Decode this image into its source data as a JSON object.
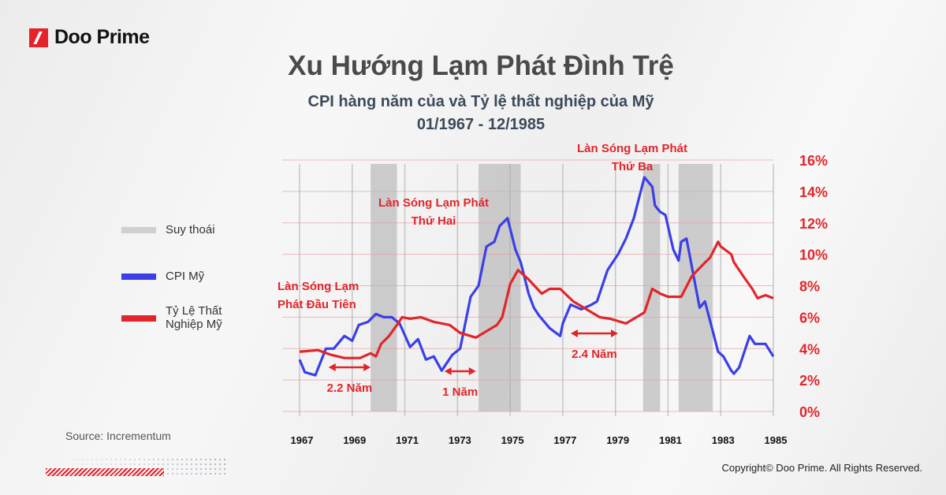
{
  "brand": {
    "name": "Doo Prime"
  },
  "header": {
    "title": "Xu Hướng Lạm Phát Đình Trệ",
    "subtitle_line1": "CPI hàng năm của và Tỷ lệ thất nghiệp của Mỹ",
    "subtitle_line2": "01/1967 - 12/1985"
  },
  "legend": [
    {
      "label": "Suy thoái",
      "color": "#c8c8c8"
    },
    {
      "label": "CPI Mỹ",
      "color": "#3a3fe8"
    },
    {
      "label_line1": "Tỷ Lệ Thất",
      "label_line2": "Nghiệp Mỹ",
      "color": "#e0262b"
    }
  ],
  "footer": {
    "source": "Source: Incrementum",
    "copyright": "Copyright© Doo Prime. All Rights Reserved."
  },
  "chart_data": {
    "type": "line",
    "xlim": [
      1967,
      1985
    ],
    "ylim": [
      0,
      16
    ],
    "x_ticks": [
      "1967",
      "1969",
      "1971",
      "1973",
      "1975",
      "1977",
      "1979",
      "1981",
      "1983",
      "1985"
    ],
    "y_ticks": [
      "0%",
      "2%",
      "4%",
      "6%",
      "8%",
      "10%",
      "12%",
      "14%",
      "16%"
    ],
    "grid": true,
    "legend_placement": "left",
    "recessions": [
      [
        1969.7,
        1970.7
      ],
      [
        1973.8,
        1975.4
      ],
      [
        1980.05,
        1980.7
      ],
      [
        1981.4,
        1982.7
      ]
    ],
    "series": [
      {
        "name": "CPI Mỹ",
        "color": "#3a3fe8",
        "points": [
          [
            1967.0,
            3.3
          ],
          [
            1967.2,
            2.5
          ],
          [
            1967.6,
            2.3
          ],
          [
            1968.0,
            4.0
          ],
          [
            1968.3,
            4.0
          ],
          [
            1968.7,
            4.8
          ],
          [
            1969.0,
            4.5
          ],
          [
            1969.25,
            5.5
          ],
          [
            1969.6,
            5.7
          ],
          [
            1969.9,
            6.2
          ],
          [
            1970.2,
            6.0
          ],
          [
            1970.5,
            6.0
          ],
          [
            1970.8,
            5.6
          ],
          [
            1971.2,
            4.1
          ],
          [
            1971.5,
            4.6
          ],
          [
            1971.8,
            3.3
          ],
          [
            1972.1,
            3.5
          ],
          [
            1972.4,
            2.6
          ],
          [
            1972.8,
            3.6
          ],
          [
            1973.1,
            4.0
          ],
          [
            1973.5,
            7.3
          ],
          [
            1973.8,
            8.0
          ],
          [
            1974.1,
            10.5
          ],
          [
            1974.4,
            10.8
          ],
          [
            1974.6,
            11.8
          ],
          [
            1974.9,
            12.3
          ],
          [
            1975.2,
            10.3
          ],
          [
            1975.4,
            9.5
          ],
          [
            1975.7,
            7.5
          ],
          [
            1975.9,
            6.6
          ],
          [
            1976.1,
            6.1
          ],
          [
            1976.5,
            5.3
          ],
          [
            1976.9,
            4.8
          ],
          [
            1977.0,
            5.6
          ],
          [
            1977.3,
            6.8
          ],
          [
            1977.7,
            6.5
          ],
          [
            1978.1,
            6.8
          ],
          [
            1978.3,
            7.0
          ],
          [
            1978.7,
            9.0
          ],
          [
            1979.1,
            10.0
          ],
          [
            1979.4,
            11.0
          ],
          [
            1979.7,
            12.3
          ],
          [
            1980.1,
            14.9
          ],
          [
            1980.4,
            14.3
          ],
          [
            1980.5,
            13.1
          ],
          [
            1980.7,
            12.7
          ],
          [
            1980.9,
            12.5
          ],
          [
            1981.2,
            10.3
          ],
          [
            1981.4,
            9.6
          ],
          [
            1981.5,
            10.8
          ],
          [
            1981.7,
            11.0
          ],
          [
            1982.2,
            6.6
          ],
          [
            1982.4,
            7.0
          ],
          [
            1982.7,
            5.1
          ],
          [
            1982.9,
            3.8
          ],
          [
            1983.1,
            3.5
          ],
          [
            1983.4,
            2.6
          ],
          [
            1983.5,
            2.4
          ],
          [
            1983.7,
            2.8
          ],
          [
            1984.1,
            4.8
          ],
          [
            1984.3,
            4.3
          ],
          [
            1984.7,
            4.3
          ],
          [
            1985.0,
            3.5
          ]
        ]
      },
      {
        "name": "Tỷ Lệ Thất Nghiệp Mỹ",
        "color": "#e0262b",
        "points": [
          [
            1967.0,
            3.8
          ],
          [
            1967.7,
            3.9
          ],
          [
            1968.2,
            3.6
          ],
          [
            1968.7,
            3.4
          ],
          [
            1969.3,
            3.4
          ],
          [
            1969.7,
            3.7
          ],
          [
            1969.9,
            3.5
          ],
          [
            1970.1,
            4.3
          ],
          [
            1970.4,
            4.8
          ],
          [
            1970.7,
            5.5
          ],
          [
            1970.9,
            6.0
          ],
          [
            1971.2,
            5.9
          ],
          [
            1971.6,
            6.0
          ],
          [
            1972.1,
            5.7
          ],
          [
            1972.7,
            5.5
          ],
          [
            1973.1,
            5.0
          ],
          [
            1973.7,
            4.7
          ],
          [
            1974.1,
            5.1
          ],
          [
            1974.5,
            5.5
          ],
          [
            1974.7,
            6.0
          ],
          [
            1975.0,
            8.1
          ],
          [
            1975.3,
            9.0
          ],
          [
            1975.7,
            8.4
          ],
          [
            1976.2,
            7.5
          ],
          [
            1976.5,
            7.8
          ],
          [
            1976.9,
            7.8
          ],
          [
            1977.4,
            7.0
          ],
          [
            1977.9,
            6.5
          ],
          [
            1978.4,
            6.0
          ],
          [
            1978.8,
            5.9
          ],
          [
            1979.4,
            5.6
          ],
          [
            1979.8,
            6.0
          ],
          [
            1980.1,
            6.3
          ],
          [
            1980.4,
            7.8
          ],
          [
            1980.7,
            7.5
          ],
          [
            1981.0,
            7.3
          ],
          [
            1981.5,
            7.3
          ],
          [
            1981.9,
            8.6
          ],
          [
            1982.3,
            9.3
          ],
          [
            1982.6,
            9.8
          ],
          [
            1982.9,
            10.8
          ],
          [
            1983.0,
            10.5
          ],
          [
            1983.4,
            10.0
          ],
          [
            1983.5,
            9.5
          ],
          [
            1983.9,
            8.5
          ],
          [
            1984.2,
            7.8
          ],
          [
            1984.4,
            7.2
          ],
          [
            1984.7,
            7.4
          ],
          [
            1985.0,
            7.2
          ]
        ]
      }
    ],
    "annotations": [
      {
        "lines": [
          "Làn Sóng Lạm",
          "Phát Đầu Tiên"
        ]
      },
      {
        "lines": [
          "Làn Sóng Lạm Phát",
          "Thứ Hai"
        ]
      },
      {
        "lines": [
          "Làn Sóng Lạm Phát",
          "Thứ Ba"
        ]
      }
    ],
    "lag_arrows": [
      {
        "label": "2.2 Năm",
        "from": 1968.1,
        "to": 1969.7
      },
      {
        "label": "1 Năm",
        "from": 1972.5,
        "to": 1973.7
      },
      {
        "label": "2.4 Năm",
        "from": 1977.3,
        "to": 1979.1
      }
    ]
  }
}
